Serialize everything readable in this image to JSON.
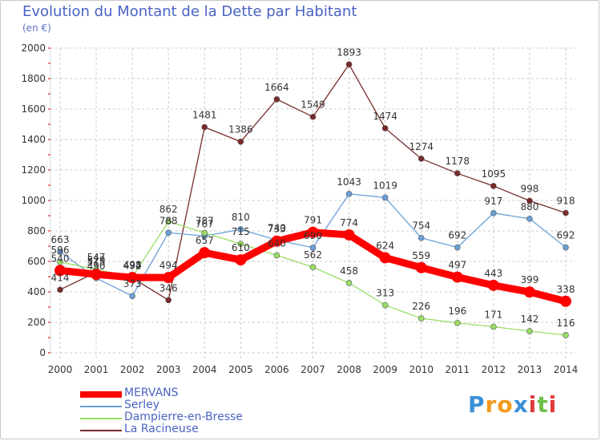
{
  "title": "Evolution du Montant de la Dette par Habitant",
  "unit_label": "(en €)",
  "logo_text": "Proxiti",
  "colors": {
    "MERVANS": "#ff0000",
    "Serley": "#6aa0d8",
    "Dampierre-en-Bresse": "#99dd66",
    "La Racineuse": "#7a2a2a",
    "grid": "#cccccc",
    "axis_text": "#333333",
    "title": "#4a63c4"
  },
  "chart_data": {
    "type": "line",
    "title": "Evolution du Montant de la Dette par Habitant",
    "xlabel": "",
    "ylabel": "(en €)",
    "ylim": [
      0,
      2000
    ],
    "yticks": [
      0,
      200,
      400,
      600,
      800,
      1000,
      1200,
      1400,
      1600,
      1800,
      2000
    ],
    "grid": true,
    "legend_position": "bottom-left",
    "categories": [
      "2000",
      "2001",
      "2002",
      "2003",
      "2004",
      "2005",
      "2006",
      "2007",
      "2008",
      "2009",
      "2010",
      "2011",
      "2012",
      "2013",
      "2014"
    ],
    "series": [
      {
        "name": "MERVANS",
        "values": [
          540,
          515,
          494,
          494,
          657,
          610,
          733,
          791,
          774,
          624,
          559,
          497,
          443,
          399,
          338
        ]
      },
      {
        "name": "Serley",
        "values": [
          663,
          490,
          373,
          788,
          767,
          810,
          740,
          690,
          1043,
          1019,
          754,
          692,
          917,
          880,
          692
        ]
      },
      {
        "name": "Dampierre-en-Bresse",
        "values": [
          596,
          547,
          498,
          862,
          787,
          715,
          640,
          562,
          458,
          313,
          226,
          196,
          171,
          142,
          116
        ]
      },
      {
        "name": "La Racineuse",
        "values": [
          414,
          529,
          492,
          346,
          1481,
          1386,
          1664,
          1549,
          1893,
          1474,
          1274,
          1178,
          1095,
          998,
          918
        ]
      }
    ]
  }
}
